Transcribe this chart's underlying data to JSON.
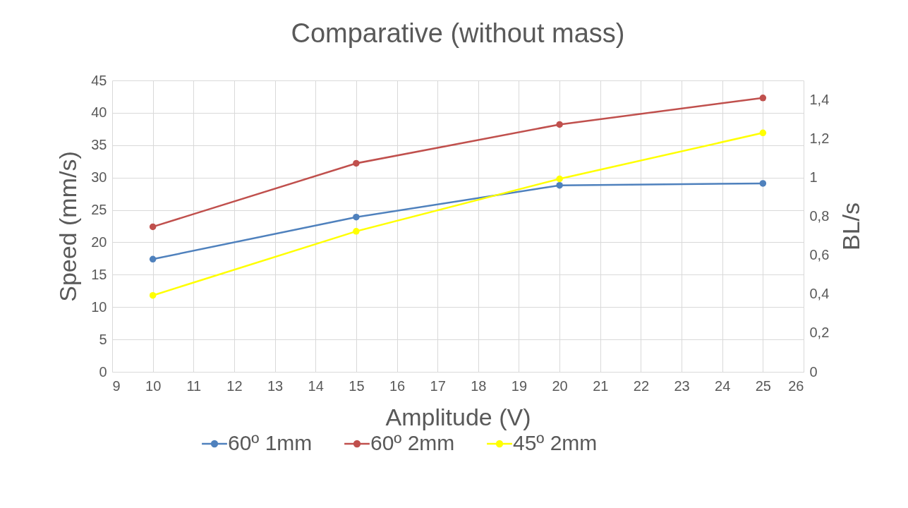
{
  "chart_data": {
    "type": "line",
    "title": "Comparative (without mass)",
    "xlabel": "Amplitude (V)",
    "ylabel": "Speed (mm/s)",
    "y2label": "BL/s",
    "x": [
      10,
      15,
      20,
      25
    ],
    "series": [
      {
        "name": "60º 1mm",
        "color": "#4f81bd",
        "values": [
          17.4,
          23.9,
          28.8,
          29.1
        ]
      },
      {
        "name": "60º 2mm",
        "color": "#c0504d",
        "values": [
          22.4,
          32.2,
          38.2,
          42.3
        ]
      },
      {
        "name": "45º 2mm",
        "color": "#ffff00",
        "values": [
          11.8,
          21.7,
          29.8,
          36.9
        ]
      }
    ],
    "xlim": [
      9,
      26
    ],
    "xticks": [
      9,
      10,
      11,
      12,
      13,
      14,
      15,
      16,
      17,
      18,
      19,
      20,
      21,
      22,
      23,
      24,
      25,
      26
    ],
    "ylim": [
      0,
      45
    ],
    "yticks": [
      0,
      5,
      10,
      15,
      20,
      25,
      30,
      35,
      40,
      45
    ],
    "y2lim": [
      0,
      1.5
    ],
    "y2ticks": [
      0,
      {
        "value": 0.2,
        "label": "0,2"
      },
      {
        "value": 0.4,
        "label": "0,4"
      },
      {
        "value": 0.6,
        "label": "0,6"
      },
      {
        "value": 0.8,
        "label": "0,8"
      },
      1,
      {
        "value": 1.2,
        "label": "1,2"
      },
      {
        "value": 1.4,
        "label": "1,4"
      }
    ],
    "grid": true,
    "legend": "bottom",
    "marker": "circle",
    "line_style": "solid"
  }
}
